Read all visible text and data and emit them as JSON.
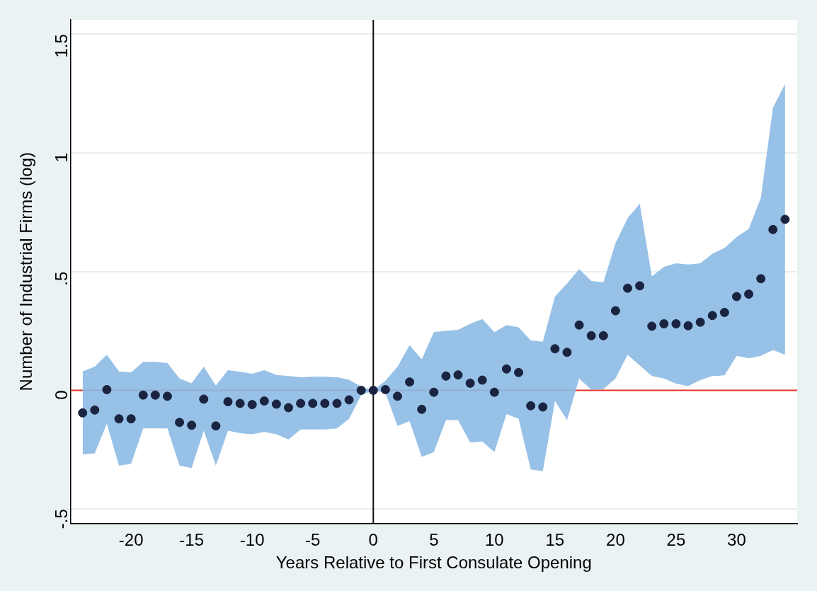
{
  "chart_data": {
    "type": "scatter",
    "xlabel": "Years Relative to First Consulate Opening",
    "ylabel": "Number of Industrial Firms (log)",
    "x": [
      -24,
      -23,
      -22,
      -21,
      -20,
      -19,
      -18,
      -17,
      -16,
      -15,
      -14,
      -13,
      -12,
      -11,
      -10,
      -9,
      -8,
      -7,
      -6,
      -5,
      -4,
      -3,
      -2,
      -1,
      0,
      1,
      2,
      3,
      4,
      5,
      6,
      7,
      8,
      9,
      10,
      11,
      12,
      13,
      14,
      15,
      16,
      17,
      18,
      19,
      20,
      21,
      22,
      23,
      24,
      25,
      26,
      27,
      28,
      29,
      30,
      31,
      32,
      33,
      34
    ],
    "series": [
      {
        "color": "#1a2340",
        "values": [
          -0.095,
          -0.083,
          0.003,
          -0.12,
          -0.12,
          -0.02,
          -0.02,
          -0.025,
          -0.135,
          -0.147,
          -0.037,
          -0.15,
          -0.048,
          -0.055,
          -0.06,
          -0.045,
          -0.058,
          -0.073,
          -0.055,
          -0.055,
          -0.055,
          -0.055,
          -0.04,
          0,
          0,
          0.003,
          -0.025,
          0.035,
          -0.08,
          -0.008,
          0.06,
          0.065,
          0.03,
          0.043,
          -0.008,
          0.09,
          0.075,
          -0.065,
          -0.07,
          0.175,
          0.16,
          0.275,
          0.23,
          0.23,
          0.335,
          0.43,
          0.44,
          0.27,
          0.28,
          0.28,
          0.272,
          0.287,
          0.315,
          0.328,
          0.395,
          0.405,
          0.47,
          0.677,
          0.72
        ],
        "upper": [
          0.08,
          0.1,
          0.15,
          0.08,
          0.075,
          0.12,
          0.12,
          0.115,
          0.05,
          0.03,
          0.1,
          0.02,
          0.085,
          0.078,
          0.07,
          0.085,
          0.065,
          0.06,
          0.055,
          0.057,
          0.057,
          0.055,
          0.045,
          0.015,
          0,
          0.04,
          0.1,
          0.19,
          0.13,
          0.245,
          0.25,
          0.255,
          0.28,
          0.3,
          0.245,
          0.275,
          0.265,
          0.21,
          0.205,
          0.395,
          0.45,
          0.51,
          0.46,
          0.455,
          0.62,
          0.725,
          0.785,
          0.48,
          0.52,
          0.535,
          0.53,
          0.535,
          0.575,
          0.6,
          0.645,
          0.68,
          0.81,
          1.19,
          1.29
        ],
        "lower": [
          -0.27,
          -0.265,
          -0.14,
          -0.317,
          -0.31,
          -0.16,
          -0.16,
          -0.16,
          -0.317,
          -0.327,
          -0.17,
          -0.317,
          -0.17,
          -0.18,
          -0.185,
          -0.175,
          -0.185,
          -0.207,
          -0.165,
          -0.165,
          -0.165,
          -0.16,
          -0.12,
          -0.02,
          0,
          -0.01,
          -0.15,
          -0.13,
          -0.28,
          -0.26,
          -0.125,
          -0.125,
          -0.22,
          -0.215,
          -0.26,
          -0.1,
          -0.12,
          -0.333,
          -0.34,
          -0.045,
          -0.125,
          0.05,
          0.003,
          0.005,
          0.05,
          0.15,
          0.105,
          0.06,
          0.05,
          0.028,
          0.018,
          0.043,
          0.06,
          0.063,
          0.145,
          0.135,
          0.145,
          0.17,
          0.15
        ]
      }
    ],
    "xlim": [
      -25,
      35
    ],
    "xticks": [
      -20,
      -15,
      -10,
      -5,
      0,
      5,
      10,
      15,
      20,
      25,
      30
    ],
    "ylim": [
      -0.56,
      1.56
    ],
    "yticks": [
      {
        "value": -0.5,
        "label": "-.5"
      },
      0,
      {
        "value": 0.5,
        "label": ".5"
      },
      1,
      1.5
    ],
    "ref_lines": [
      {
        "axis": "y",
        "value": 0,
        "color": "#e8372a"
      },
      {
        "axis": "x",
        "value": 0,
        "color": "#111111"
      }
    ],
    "grid": "y",
    "legend": false,
    "marker": "circle"
  }
}
